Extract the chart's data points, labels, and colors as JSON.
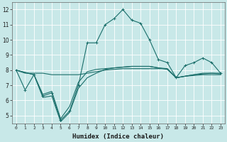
{
  "title": "",
  "xlabel": "Humidex (Indice chaleur)",
  "bg_color": "#c8e8e8",
  "line_color": "#1a6e6a",
  "grid_color": "#b0d8d8",
  "ylim": [
    4.5,
    12.5
  ],
  "xlim": [
    -0.5,
    23.5
  ],
  "yticks": [
    5,
    6,
    7,
    8,
    9,
    10,
    11,
    12
  ],
  "xticks": [
    0,
    1,
    2,
    3,
    4,
    5,
    6,
    7,
    8,
    9,
    10,
    11,
    12,
    13,
    14,
    15,
    16,
    17,
    18,
    19,
    20,
    21,
    22,
    23
  ],
  "line1_x": [
    0,
    1,
    2,
    3,
    4,
    5,
    6,
    7,
    8,
    9,
    10,
    11,
    12,
    13,
    14,
    15,
    16,
    17,
    18,
    19,
    20,
    21,
    22,
    23
  ],
  "line1_y": [
    8.0,
    6.7,
    7.7,
    6.3,
    6.5,
    4.7,
    5.3,
    7.0,
    9.8,
    9.8,
    11.0,
    11.4,
    12.0,
    11.3,
    11.1,
    10.0,
    8.7,
    8.5,
    7.5,
    8.3,
    8.5,
    8.8,
    8.5,
    7.8
  ],
  "line2_x": [
    0,
    1,
    2,
    3,
    4,
    5,
    6,
    7,
    8,
    9,
    10,
    11,
    12,
    13,
    14,
    15,
    16,
    17,
    18,
    19,
    20,
    21,
    22,
    23
  ],
  "line2_y": [
    8.0,
    7.8,
    7.8,
    7.8,
    7.7,
    7.7,
    7.7,
    7.7,
    7.8,
    7.9,
    8.0,
    8.05,
    8.1,
    8.1,
    8.1,
    8.1,
    8.1,
    8.1,
    7.5,
    7.6,
    7.7,
    7.75,
    7.8,
    7.8
  ],
  "line3_x": [
    0,
    2,
    3,
    4,
    5,
    6,
    7,
    8,
    9,
    10,
    11,
    12,
    13,
    14,
    15,
    16,
    17,
    18,
    19,
    20,
    21,
    22,
    23
  ],
  "line3_y": [
    8.0,
    7.7,
    6.2,
    6.3,
    4.6,
    5.2,
    6.8,
    7.5,
    7.8,
    8.05,
    8.15,
    8.2,
    8.25,
    8.25,
    8.25,
    8.15,
    8.05,
    7.5,
    7.6,
    7.65,
    7.7,
    7.7,
    7.7
  ],
  "line4_x": [
    0,
    2,
    3,
    4,
    5,
    6,
    7,
    8,
    9,
    10,
    11,
    12,
    13,
    14,
    15,
    16,
    17,
    18,
    19,
    20,
    21,
    22,
    23
  ],
  "line4_y": [
    8.0,
    7.7,
    6.4,
    6.6,
    4.8,
    5.6,
    7.2,
    7.9,
    8.05,
    8.1,
    8.15,
    8.2,
    8.25,
    8.25,
    8.25,
    8.15,
    8.1,
    7.5,
    7.6,
    7.7,
    7.8,
    7.8,
    7.75
  ]
}
